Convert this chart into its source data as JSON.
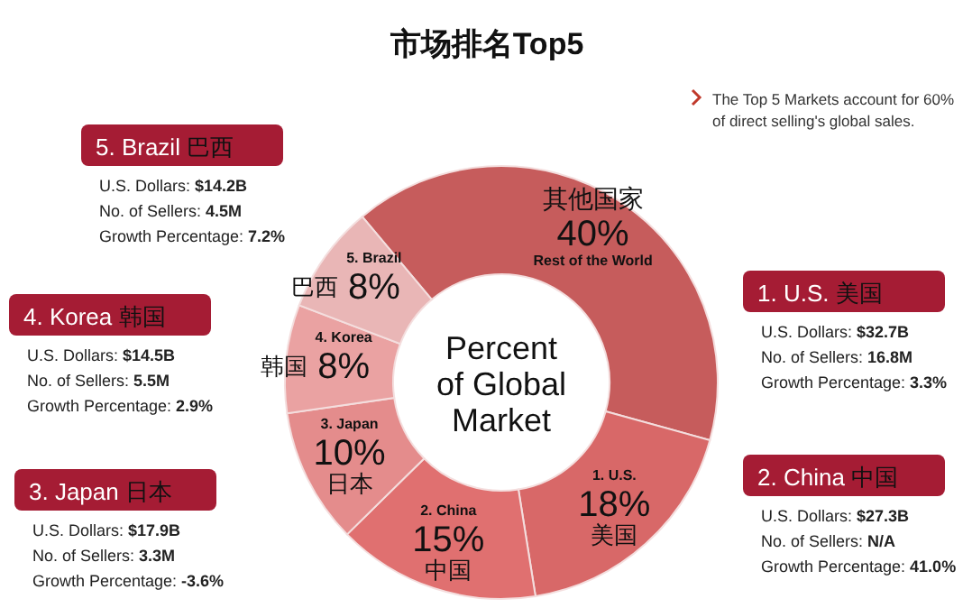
{
  "chart_data": {
    "type": "donut",
    "title": "市场排名Top5",
    "categories": [
      "Rest of the World",
      "1. U.S.",
      "2. China",
      "3. Japan",
      "4. Korea",
      "5. Brazil"
    ],
    "values": [
      40,
      18,
      15,
      10,
      8,
      8
    ],
    "value_labels": [
      "40%",
      "18%",
      "15%",
      "10%",
      "8%",
      "8%"
    ],
    "colors": [
      "#c65c5c",
      "#d86868",
      "#e07070",
      "#e48c8c",
      "#eaa2a2",
      "#e9b6b6"
    ],
    "annotations": [
      "The Top 5 Markets account for 60% of direct selling's global sales.",
      "Percent\nof Global\nMarket",
      {
        "text": "其他国家",
        "x": "Rest of the World"
      },
      {
        "text": "美国",
        "x": "1. U.S."
      },
      {
        "text": "中国",
        "x": "2. China"
      },
      {
        "text": "日本",
        "x": "3. Japan"
      },
      {
        "text": "韩国",
        "x": "4. Korea"
      },
      {
        "text": "巴西",
        "x": "5. Brazil"
      },
      "5. Brazil 巴西",
      "U.S. Dollars: $14.2B",
      "No. of Sellers: 4.5M",
      "Growth Percentage: 7.2%",
      "4. Korea 韩国",
      "U.S. Dollars: $14.5B",
      "No. of Sellers: 5.5M",
      "Growth Percentage: 2.9%",
      "3. Japan 日本",
      "U.S. Dollars: $17.9B",
      "No. of Sellers: 3.3M",
      "Growth Percentage: -3.6%",
      "1. U.S. 美国",
      "U.S. Dollars: $32.7B",
      "No. of Sellers: 16.8M",
      "Growth Percentage: 3.3%",
      "2. China 中国",
      "U.S. Dollars: $27.3B",
      "No. of Sellers: N/A",
      "Growth Percentage: 41.0%"
    ]
  }
}
